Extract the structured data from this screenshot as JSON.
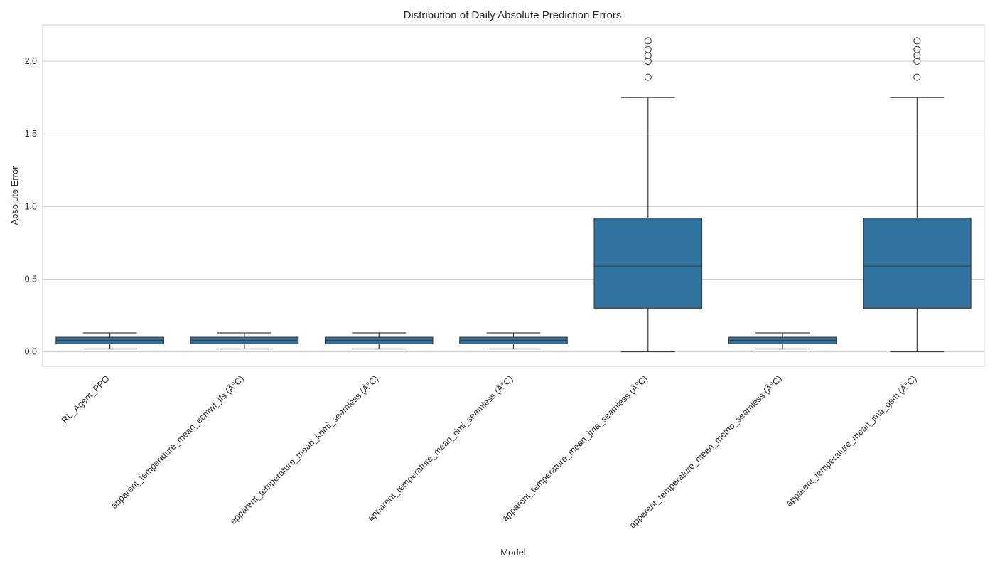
{
  "chart_data": {
    "type": "box",
    "title": "Distribution of Daily Absolute Prediction Errors",
    "xlabel": "Model",
    "ylabel": "Absolute Error",
    "ylim": [
      -0.1,
      2.25
    ],
    "yticks": [
      0.0,
      0.5,
      1.0,
      1.5,
      2.0
    ],
    "ytick_labels": [
      "0.0",
      "0.5",
      "1.0",
      "1.5",
      "2.0"
    ],
    "grid": true,
    "box_color": "#3274a1",
    "line_color": "#3d3d3d",
    "categories": [
      "RL_Agent_PPO",
      "apparent_temperature_mean_ecmwf_ifs (Â°C)",
      "apparent_temperature_mean_knmi_seamless (Â°C)",
      "apparent_temperature_mean_dmi_seamless (Â°C)",
      "apparent_temperature_mean_jma_seamless (Â°C)",
      "apparent_temperature_mean_metno_seamless (Â°C)",
      "apparent_temperature_mean_jma_gsm (Â°C)"
    ],
    "boxes": [
      {
        "whisker_low": 0.02,
        "q1": 0.055,
        "median": 0.08,
        "q3": 0.1,
        "whisker_high": 0.13,
        "outliers": []
      },
      {
        "whisker_low": 0.02,
        "q1": 0.055,
        "median": 0.08,
        "q3": 0.1,
        "whisker_high": 0.13,
        "outliers": []
      },
      {
        "whisker_low": 0.02,
        "q1": 0.055,
        "median": 0.08,
        "q3": 0.1,
        "whisker_high": 0.13,
        "outliers": []
      },
      {
        "whisker_low": 0.02,
        "q1": 0.055,
        "median": 0.08,
        "q3": 0.1,
        "whisker_high": 0.13,
        "outliers": []
      },
      {
        "whisker_low": 0.0,
        "q1": 0.3,
        "median": 0.59,
        "q3": 0.92,
        "whisker_high": 1.75,
        "outliers": [
          1.89,
          2.0,
          2.04,
          2.08,
          2.14
        ]
      },
      {
        "whisker_low": 0.02,
        "q1": 0.055,
        "median": 0.08,
        "q3": 0.1,
        "whisker_high": 0.13,
        "outliers": []
      },
      {
        "whisker_low": 0.0,
        "q1": 0.3,
        "median": 0.59,
        "q3": 0.92,
        "whisker_high": 1.75,
        "outliers": [
          1.89,
          2.0,
          2.04,
          2.08,
          2.14
        ]
      }
    ]
  }
}
